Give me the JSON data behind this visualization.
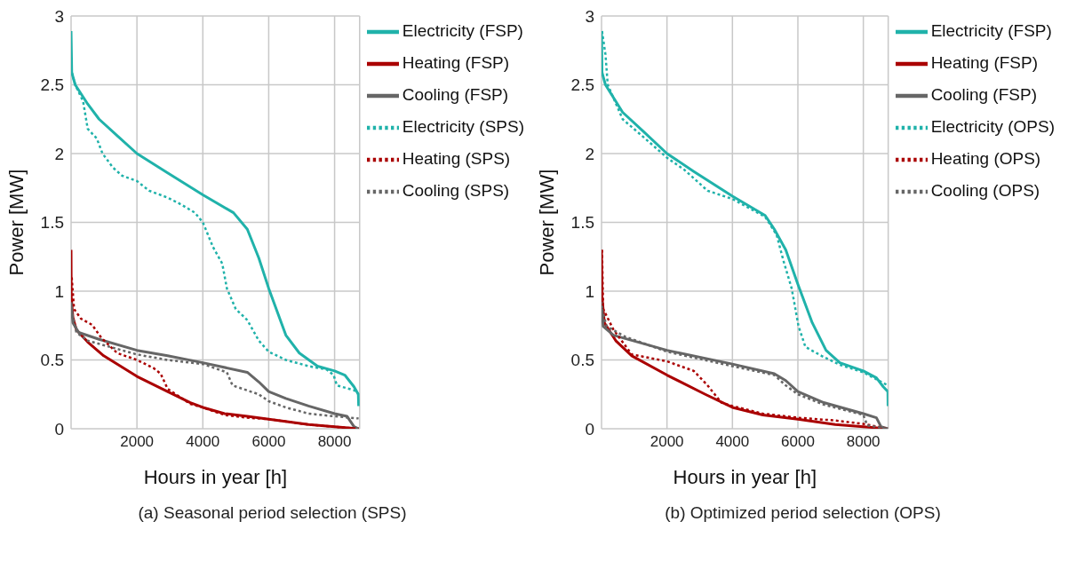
{
  "chart_data": [
    {
      "type": "line",
      "title": "(a) Seasonal period selection (SPS)",
      "xlabel": "Hours in year [h]",
      "ylabel": "Power [MW]",
      "xlim": [
        0,
        8760
      ],
      "xticks": [
        2000,
        4000,
        6000,
        8000
      ],
      "ylim": [
        0,
        3
      ],
      "yticks": [
        0,
        0.5,
        1,
        1.5,
        2,
        2.5,
        3
      ],
      "grid": true,
      "legend": "top right",
      "series": [
        {
          "name": "Electricity (FSP)",
          "color": "#20b2aa",
          "line_style": "solid",
          "x": [
            0,
            20,
            125,
            505,
            850,
            1400,
            2000,
            2930,
            4000,
            4930,
            5350,
            5700,
            6000,
            6520,
            6930,
            7480,
            8000,
            8310,
            8590,
            8720,
            8730
          ],
          "values": [
            2.89,
            2.59,
            2.5,
            2.36,
            2.25,
            2.13,
            2.0,
            1.86,
            1.7,
            1.57,
            1.45,
            1.24,
            1.02,
            0.68,
            0.55,
            0.455,
            0.42,
            0.39,
            0.305,
            0.25,
            0.165
          ]
        },
        {
          "name": "Heating (FSP)",
          "color": "#aa0000",
          "line_style": "solid",
          "x": [
            0,
            5,
            55,
            160,
            505,
            990,
            2000,
            2930,
            3620,
            4000,
            4660,
            5350,
            6000,
            7210,
            8000,
            8730
          ],
          "values": [
            1.3,
            0.96,
            0.81,
            0.72,
            0.63,
            0.53,
            0.38,
            0.27,
            0.19,
            0.155,
            0.11,
            0.09,
            0.07,
            0.03,
            0.015,
            0
          ]
        },
        {
          "name": "Cooling (FSP)",
          "color": "#666666",
          "line_style": "solid",
          "x": [
            0,
            55,
            230,
            850,
            2000,
            2930,
            4000,
            5350,
            5700,
            6000,
            6520,
            7210,
            8000,
            8380,
            8590,
            8730
          ],
          "values": [
            0.92,
            0.77,
            0.7,
            0.65,
            0.57,
            0.53,
            0.48,
            0.41,
            0.34,
            0.27,
            0.22,
            0.165,
            0.11,
            0.09,
            0.015,
            0
          ]
        },
        {
          "name": "Electricity (SPS)",
          "color": "#20b2aa",
          "line_style": "dotted",
          "x": [
            20,
            125,
            365,
            505,
            780,
            955,
            1265,
            1545,
            2000,
            2370,
            2930,
            3340,
            3760,
            4000,
            4310,
            4590,
            4730,
            5000,
            5350,
            5700,
            6000,
            6520,
            7210,
            7760,
            7970,
            8070,
            8590,
            8730
          ],
          "values": [
            2.59,
            2.5,
            2.38,
            2.18,
            2.11,
            2.0,
            1.9,
            1.84,
            1.8,
            1.73,
            1.68,
            1.63,
            1.57,
            1.5,
            1.32,
            1.2,
            1.02,
            0.87,
            0.79,
            0.64,
            0.56,
            0.5,
            0.455,
            0.43,
            0.39,
            0.315,
            0.28,
            0.25
          ]
        },
        {
          "name": "Heating (SPS)",
          "color": "#aa0000",
          "line_style": "dotted",
          "x": [
            20,
            90,
            300,
            640,
            920,
            1400,
            2000,
            2510,
            2720,
            2930,
            3620,
            4000,
            4660,
            5350,
            6000,
            7210,
            8000,
            8730
          ],
          "values": [
            1.1,
            0.87,
            0.8,
            0.755,
            0.66,
            0.55,
            0.5,
            0.44,
            0.4,
            0.29,
            0.18,
            0.155,
            0.1,
            0.08,
            0.07,
            0.03,
            0.015,
            0
          ]
        },
        {
          "name": "Cooling (SPS)",
          "color": "#666666",
          "line_style": "dotted",
          "x": [
            0,
            160,
            505,
            2000,
            2930,
            4000,
            4730,
            4900,
            5700,
            6000,
            6520,
            7210,
            8000,
            8730
          ],
          "values": [
            0.87,
            0.7,
            0.64,
            0.54,
            0.5,
            0.47,
            0.41,
            0.315,
            0.25,
            0.2,
            0.155,
            0.11,
            0.09,
            0.075
          ]
        }
      ]
    },
    {
      "type": "line",
      "title": "(b) Optimized period selection (OPS)",
      "xlabel": "Hours in year [h]",
      "ylabel": "Power [MW]",
      "xlim": [
        0,
        8760
      ],
      "xticks": [
        2000,
        4000,
        6000,
        8000
      ],
      "ylim": [
        0,
        3
      ],
      "yticks": [
        0,
        0.5,
        1,
        1.5,
        2,
        2.5,
        3
      ],
      "grid": true,
      "legend": "top right",
      "series": [
        {
          "name": "Electricity (FSP)",
          "color": "#20b2aa",
          "line_style": "solid",
          "x": [
            0,
            15,
            120,
            645,
            1280,
            2000,
            2820,
            4000,
            5000,
            5280,
            5630,
            6000,
            6440,
            6860,
            7280,
            8000,
            8400,
            8610,
            8750,
            8755
          ],
          "values": [
            2.89,
            2.59,
            2.5,
            2.3,
            2.16,
            2.0,
            1.87,
            1.69,
            1.55,
            1.45,
            1.3,
            1.05,
            0.77,
            0.57,
            0.48,
            0.42,
            0.37,
            0.305,
            0.27,
            0.165
          ]
        },
        {
          "name": "Heating (FSP)",
          "color": "#aa0000",
          "line_style": "solid",
          "x": [
            0,
            15,
            85,
            435,
            925,
            2000,
            3170,
            4000,
            4930,
            6000,
            7140,
            8000,
            8750
          ],
          "values": [
            1.3,
            0.96,
            0.77,
            0.64,
            0.53,
            0.39,
            0.25,
            0.155,
            0.1,
            0.07,
            0.03,
            0.015,
            0
          ]
        },
        {
          "name": "Cooling (FSP)",
          "color": "#666666",
          "line_style": "solid",
          "x": [
            0,
            50,
            365,
            2000,
            4000,
            5280,
            5630,
            6000,
            6790,
            8000,
            8400,
            8540,
            8750
          ],
          "values": [
            0.92,
            0.745,
            0.68,
            0.57,
            0.47,
            0.4,
            0.35,
            0.27,
            0.19,
            0.11,
            0.08,
            0.015,
            0
          ]
        },
        {
          "name": "Electricity (OPS)",
          "color": "#20b2aa",
          "line_style": "dotted",
          "x": [
            15,
            120,
            190,
            645,
            1280,
            2000,
            2540,
            3240,
            4000,
            5000,
            5350,
            5560,
            5810,
            6020,
            6230,
            6720,
            7280,
            8000,
            8750
          ],
          "values": [
            2.89,
            2.72,
            2.5,
            2.25,
            2.12,
            1.97,
            1.88,
            1.73,
            1.67,
            1.54,
            1.41,
            1.22,
            1.02,
            0.745,
            0.595,
            0.53,
            0.465,
            0.41,
            0.315
          ]
        },
        {
          "name": "Heating (OPS)",
          "color": "#aa0000",
          "line_style": "dotted",
          "x": [
            15,
            50,
            365,
            925,
            2000,
            2820,
            3240,
            3660,
            4000,
            4930,
            6000,
            7140,
            8000,
            8750
          ],
          "values": [
            1.3,
            0.87,
            0.72,
            0.54,
            0.49,
            0.42,
            0.315,
            0.19,
            0.165,
            0.11,
            0.08,
            0.06,
            0.035,
            0
          ]
        },
        {
          "name": "Cooling (OPS)",
          "color": "#666666",
          "line_style": "dotted",
          "x": [
            15,
            155,
            715,
            2000,
            4000,
            5280,
            5630,
            6000,
            6790,
            8000,
            8120,
            8750
          ],
          "values": [
            0.87,
            0.745,
            0.67,
            0.56,
            0.455,
            0.39,
            0.315,
            0.25,
            0.175,
            0.1,
            0.025,
            0
          ]
        }
      ]
    }
  ]
}
